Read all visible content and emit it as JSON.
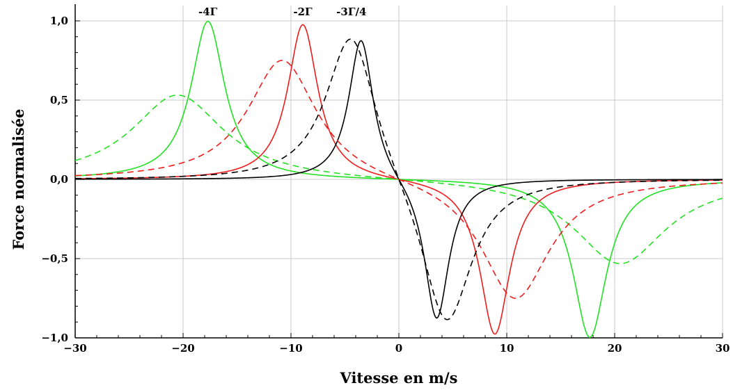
{
  "chart_data": {
    "type": "line",
    "title": "",
    "xlabel": "Vitesse en m/s",
    "ylabel": "Force normalisée",
    "xlim": [
      -30,
      30
    ],
    "ylim": [
      -1.0,
      1.0
    ],
    "grid": true,
    "x_ticks": [
      -30,
      -20,
      -10,
      0,
      10,
      20,
      30
    ],
    "x_tick_labels": [
      "−30",
      "−20",
      "−10",
      "0",
      "10",
      "20",
      "30"
    ],
    "y_ticks": [
      1.0,
      0.5,
      0.0,
      -0.5,
      -1.0
    ],
    "y_tick_labels": [
      "1,0",
      "0,5",
      "0,0",
      "−0,5",
      "−1,0"
    ],
    "peak_labels": [
      {
        "text": "-4Γ",
        "x": -17.7
      },
      {
        "text": "-2Γ",
        "x": -8.9
      },
      {
        "text": "-3Γ/4",
        "x": -4.4
      }
    ],
    "colors": {
      "green": "#22e022",
      "red": "#ee1c1c",
      "black": "#000000"
    },
    "series": [
      {
        "color": "green",
        "dash": false,
        "peak_x": 17.7,
        "amplitude": 1.0,
        "hwhm": 1.9
      },
      {
        "color": "red",
        "dash": false,
        "peak_x": 8.9,
        "amplitude": 0.985,
        "hwhm": 1.7
      },
      {
        "color": "black",
        "dash": false,
        "peak_x": 3.5,
        "amplitude": 0.91,
        "hwhm": 1.4
      },
      {
        "color": "green",
        "dash": true,
        "peak_x": 20.5,
        "amplitude": 0.54,
        "hwhm": 5.2
      },
      {
        "color": "red",
        "dash": true,
        "peak_x": 10.8,
        "amplitude": 0.775,
        "hwhm": 3.9
      },
      {
        "color": "black",
        "dash": true,
        "peak_x": 4.4,
        "amplitude": 0.98,
        "hwhm": 2.9
      }
    ]
  }
}
